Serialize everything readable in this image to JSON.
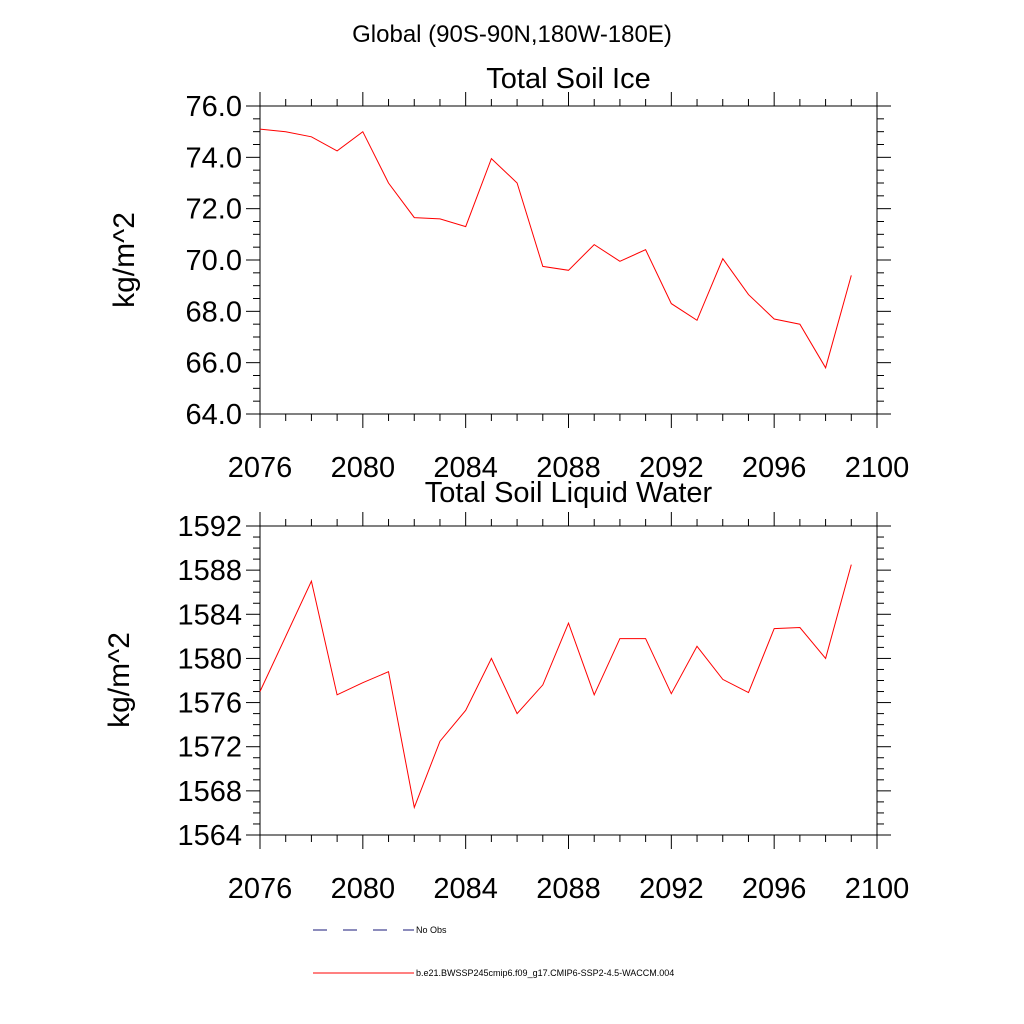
{
  "figure": {
    "title": "Global (90S-90N,180W-180E)"
  },
  "chart_data": [
    {
      "type": "line",
      "title": "Total Soil Ice",
      "xlabel": "",
      "ylabel": "kg/m^2",
      "xlim": [
        2076,
        2100
      ],
      "ylim": [
        64,
        76
      ],
      "x_ticks": [
        2076,
        2080,
        2084,
        2088,
        2092,
        2096,
        2100
      ],
      "x_tick_labels": [
        "2076",
        "2080",
        "2084",
        "2088",
        "2092",
        "2096",
        "2100"
      ],
      "y_ticks": [
        64,
        66,
        68,
        70,
        72,
        74,
        76
      ],
      "y_tick_labels": [
        "64.0",
        "66.0",
        "68.0",
        "70.0",
        "72.0",
        "74.0",
        "76.0"
      ],
      "y_minor_step": 0.5,
      "x_minor_step": 1,
      "series": [
        {
          "name": "b.e21.BWSSP245cmip6.f09_g17.CMIP6-SSP2-4.5-WACCM.004",
          "color": "#ff0000",
          "x": [
            2076,
            2077,
            2078,
            2079,
            2080,
            2081,
            2082,
            2083,
            2084,
            2085,
            2086,
            2087,
            2088,
            2089,
            2090,
            2091,
            2092,
            2093,
            2094,
            2095,
            2096,
            2097,
            2098,
            2099
          ],
          "y": [
            75.1,
            75.0,
            74.8,
            74.25,
            75.0,
            73.0,
            71.65,
            71.6,
            71.3,
            73.95,
            73.0,
            69.75,
            69.6,
            70.6,
            69.95,
            70.4,
            68.3,
            67.65,
            70.05,
            68.65,
            67.7,
            67.5,
            65.8,
            69.4
          ]
        }
      ]
    },
    {
      "type": "line",
      "title": "Total Soil Liquid Water",
      "xlabel": "",
      "ylabel": "kg/m^2",
      "xlim": [
        2076,
        2100
      ],
      "ylim": [
        1564,
        1592
      ],
      "x_ticks": [
        2076,
        2080,
        2084,
        2088,
        2092,
        2096,
        2100
      ],
      "x_tick_labels": [
        "2076",
        "2080",
        "2084",
        "2088",
        "2092",
        "2096",
        "2100"
      ],
      "y_ticks": [
        1564,
        1568,
        1572,
        1576,
        1580,
        1584,
        1588,
        1592
      ],
      "y_tick_labels": [
        "1564",
        "1568",
        "1572",
        "1576",
        "1580",
        "1584",
        "1588",
        "1592"
      ],
      "y_minor_step": 1,
      "x_minor_step": 1,
      "series": [
        {
          "name": "b.e21.BWSSP245cmip6.f09_g17.CMIP6-SSP2-4.5-WACCM.004",
          "color": "#ff0000",
          "x": [
            2076,
            2077,
            2078,
            2079,
            2080,
            2081,
            2082,
            2083,
            2084,
            2085,
            2086,
            2087,
            2088,
            2089,
            2090,
            2091,
            2092,
            2093,
            2094,
            2095,
            2096,
            2097,
            2098,
            2099
          ],
          "y": [
            1577.0,
            1582.0,
            1587.0,
            1576.7,
            1577.8,
            1578.8,
            1566.5,
            1572.5,
            1575.3,
            1580.0,
            1575.0,
            1577.6,
            1583.2,
            1576.7,
            1581.8,
            1581.8,
            1576.8,
            1581.1,
            1578.1,
            1576.9,
            1582.7,
            1582.8,
            1580.0,
            1588.5
          ]
        }
      ]
    }
  ],
  "legend": {
    "placement": "bottom",
    "entries": [
      {
        "label": "No Obs",
        "style": "dashed",
        "color": "#1a1a7a"
      },
      {
        "label": "b.e21.BWSSP245cmip6.f09_g17.CMIP6-SSP2-4.5-WACCM.004",
        "style": "solid",
        "color": "#ff0000"
      }
    ]
  }
}
